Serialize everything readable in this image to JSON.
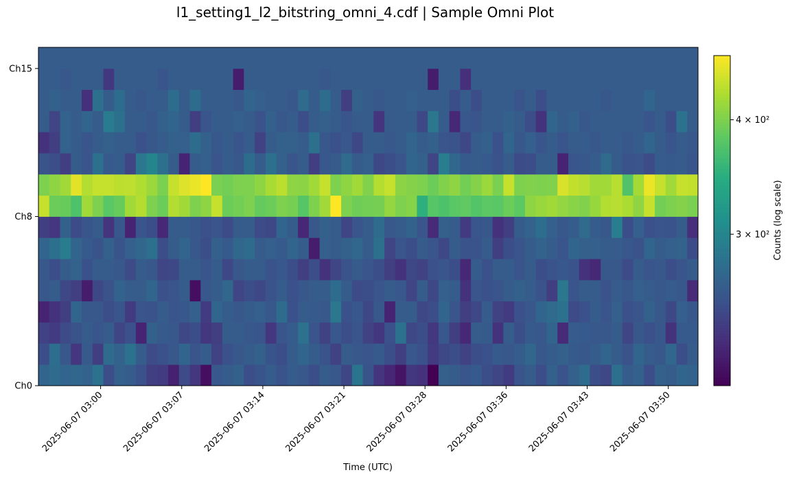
{
  "chart_data": {
    "type": "heatmap",
    "title": "l1_setting1_l2_bitstring_omni_4.cdf | Sample Omni Plot",
    "xlabel": "Time (UTC)",
    "ylabel": "",
    "colorbar_label": "Counts (log scale)",
    "colorbar_scale": "log",
    "colormap": "viridis",
    "vmin": 205,
    "vmax": 470,
    "y_channels": 16,
    "y_ticks": [
      {
        "index": 0,
        "label": "Ch0"
      },
      {
        "index": 8,
        "label": "Ch8"
      },
      {
        "index": 15,
        "label": "Ch15"
      }
    ],
    "x_range_minutes": [
      -5.75,
      55.25
    ],
    "x_ticks": [
      {
        "minute": 0.0,
        "label": "2025-06-07 03:00"
      },
      {
        "minute": 7.5,
        "label": "2025-06-07 03:07"
      },
      {
        "minute": 15.0,
        "label": "2025-06-07 03:14"
      },
      {
        "minute": 22.5,
        "label": "2025-06-07 03:21"
      },
      {
        "minute": 30.0,
        "label": "2025-06-07 03:28"
      },
      {
        "minute": 37.5,
        "label": "2025-06-07 03:36"
      },
      {
        "minute": 45.0,
        "label": "2025-06-07 03:43"
      },
      {
        "minute": 52.5,
        "label": "2025-06-07 03:50"
      }
    ],
    "colorbar_ticks": [
      {
        "value": 300,
        "label": "3 × 10²"
      },
      {
        "value": 400,
        "label": "4 × 10²"
      }
    ],
    "grid": false,
    "time_bins": 61,
    "rows": [
      [
        270,
        275,
        270,
        272,
        268,
        282,
        250,
        265,
        262,
        252,
        240,
        238,
        222,
        248,
        235,
        212,
        258,
        262,
        266,
        250,
        255,
        262,
        254,
        262,
        258,
        250,
        262,
        258,
        245,
        285,
        255,
        234,
        225,
        215,
        236,
        232,
        205,
        266,
        262,
        256,
        260,
        250,
        244,
        238,
        256,
        262,
        250,
        265,
        254,
        266,
        275,
        250,
        246,
        280,
        262,
        265,
        250,
        266,
        262,
        270,
        268
      ],
      [
        250,
        278,
        258,
        235,
        260,
        240,
        275,
        268,
        282,
        262,
        248,
        252,
        258,
        270,
        256,
        262,
        242,
        252,
        258,
        262,
        265,
        255,
        250,
        262,
        270,
        262,
        254,
        242,
        262,
        258,
        256,
        260,
        250,
        240,
        258,
        252,
        238,
        246,
        250,
        242,
        250,
        252,
        260,
        258,
        262,
        272,
        258,
        262,
        266,
        260,
        258,
        262,
        270,
        262,
        254,
        270,
        262,
        258,
        272,
        250,
        262
      ],
      [
        242,
        238,
        248,
        254,
        262,
        256,
        262,
        244,
        252,
        224,
        266,
        260,
        258,
        246,
        250,
        236,
        240,
        262,
        262,
        258,
        256,
        235,
        256,
        262,
        282,
        256,
        242,
        258,
        250,
        256,
        242,
        236,
        252,
        282,
        246,
        250,
        236,
        258,
        240,
        226,
        262,
        260,
        232,
        262,
        250,
        260,
        258,
        270,
        228,
        262,
        260,
        258,
        258,
        262,
        244,
        258,
        252,
        258,
        232,
        260,
        260
      ],
      [
        224,
        232,
        240,
        270,
        258,
        258,
        250,
        256,
        238,
        256,
        254,
        262,
        256,
        258,
        264,
        238,
        270,
        262,
        258,
        262,
        264,
        258,
        276,
        252,
        262,
        260,
        258,
        286,
        252,
        258,
        246,
        258,
        224,
        262,
        262,
        246,
        250,
        270,
        256,
        240,
        246,
        262,
        242,
        238,
        252,
        258,
        270,
        274,
        282,
        248,
        252,
        262,
        256,
        264,
        252,
        256,
        266,
        258,
        246,
        264,
        258
      ],
      [
        258,
        262,
        246,
        240,
        220,
        246,
        254,
        268,
        262,
        262,
        270,
        252,
        256,
        262,
        212,
        258,
        262,
        272,
        244,
        250,
        246,
        254,
        262,
        252,
        258,
        262,
        262,
        276,
        262,
        248,
        250,
        256,
        262,
        258,
        244,
        262,
        246,
        264,
        262,
        232,
        256,
        252,
        256,
        262,
        266,
        262,
        254,
        240,
        286,
        256,
        262,
        262,
        254,
        262,
        258,
        264,
        262,
        258,
        262,
        258,
        228
      ],
      [
        258,
        250,
        262,
        268,
        252,
        262,
        262,
        258,
        248,
        262,
        258,
        244,
        246,
        262,
        262,
        256,
        262,
        246,
        258,
        262,
        262,
        254,
        258,
        250,
        240,
        250,
        232,
        244,
        254,
        262,
        256,
        250,
        240,
        232,
        246,
        242,
        252,
        256,
        250,
        226,
        262,
        252,
        262,
        262,
        256,
        262,
        250,
        254,
        258,
        254,
        232,
        226,
        258,
        258,
        248,
        262,
        256,
        258,
        250,
        256,
        262
      ],
      [
        270,
        280,
        290,
        270,
        260,
        255,
        265,
        255,
        264,
        272,
        280,
        250,
        262,
        270,
        258,
        250,
        265,
        260,
        272,
        275,
        262,
        264,
        260,
        270,
        262,
        220,
        264,
        262,
        266,
        272,
        262,
        280,
        244,
        256,
        250,
        262,
        256,
        246,
        262,
        254,
        254,
        262,
        240,
        250,
        256,
        262,
        268,
        262,
        256,
        270,
        266,
        264,
        262,
        262,
        258,
        254,
        270,
        262,
        264,
        268,
        248
      ],
      [
        240,
        235,
        266,
        248,
        256,
        262,
        234,
        258,
        224,
        256,
        250,
        226,
        262,
        262,
        258,
        252,
        256,
        248,
        262,
        262,
        248,
        246,
        270,
        262,
        226,
        258,
        266,
        262,
        244,
        256,
        262,
        275,
        258,
        262,
        268,
        256,
        228,
        266,
        262,
        238,
        256,
        258,
        232,
        240,
        262,
        268,
        278,
        264,
        258,
        262,
        274,
        262,
        258,
        292,
        250,
        264,
        252,
        256,
        254,
        262,
        230
      ],
      [
        440,
        390,
        388,
        372,
        420,
        400,
        380,
        388,
        420,
        430,
        400,
        390,
        430,
        420,
        400,
        410,
        440,
        390,
        394,
        400,
        386,
        390,
        400,
        396,
        378,
        400,
        420,
        470,
        400,
        392,
        394,
        396,
        412,
        400,
        405,
        350,
        378,
        372,
        380,
        384,
        376,
        382,
        380,
        390,
        382,
        410,
        415,
        420,
        412,
        406,
        402,
        414,
        430,
        432,
        426,
        410,
        440,
        394,
        400,
        404,
        398
      ],
      [
        400,
        410,
        420,
        455,
        430,
        440,
        440,
        434,
        436,
        428,
        416,
        398,
        440,
        452,
        460,
        470,
        398,
        394,
        400,
        400,
        410,
        424,
        434,
        410,
        408,
        420,
        440,
        400,
        410,
        420,
        402,
        430,
        440,
        408,
        404,
        400,
        390,
        402,
        410,
        394,
        404,
        416,
        398,
        440,
        400,
        402,
        400,
        402,
        450,
        438,
        432,
        420,
        420,
        432,
        374,
        422,
        460,
        440,
        420,
        440,
        438
      ],
      [
        255,
        250,
        240,
        262,
        256,
        280,
        260,
        262,
        244,
        286,
        300,
        280,
        262,
        224,
        262,
        264,
        256,
        262,
        258,
        276,
        262,
        280,
        265,
        256,
        262,
        240,
        258,
        262,
        274,
        262,
        264,
        246,
        250,
        256,
        270,
        266,
        244,
        292,
        272,
        260,
        262,
        260,
        254,
        262,
        248,
        250,
        262,
        262,
        224,
        256,
        258,
        262,
        274,
        262,
        254,
        256,
        248,
        262,
        260,
        262,
        256
      ],
      [
        232,
        240,
        268,
        262,
        256,
        262,
        266,
        262,
        262,
        252,
        258,
        262,
        266,
        264,
        276,
        266,
        258,
        262,
        256,
        262,
        242,
        262,
        266,
        266,
        262,
        280,
        258,
        252,
        258,
        246,
        262,
        262,
        258,
        262,
        270,
        262,
        266,
        256,
        254,
        246,
        262,
        266,
        252,
        270,
        258,
        264,
        256,
        262,
        256,
        262,
        262,
        258,
        262,
        262,
        258,
        262,
        270,
        262,
        256,
        262,
        258
      ],
      [
        262,
        244,
        268,
        262,
        270,
        262,
        290,
        280,
        262,
        262,
        258,
        266,
        270,
        262,
        240,
        256,
        262,
        262,
        264,
        262,
        254,
        266,
        258,
        262,
        250,
        262,
        266,
        262,
        256,
        262,
        262,
        234,
        262,
        262,
        262,
        246,
        286,
        262,
        226,
        258,
        256,
        262,
        262,
        266,
        262,
        250,
        232,
        270,
        262,
        266,
        258,
        262,
        262,
        262,
        262,
        262,
        256,
        262,
        250,
        282,
        262
      ],
      [
        262,
        266,
        262,
        262,
        230,
        280,
        262,
        276,
        262,
        258,
        262,
        262,
        276,
        262,
        276,
        262,
        262,
        262,
        258,
        270,
        264,
        262,
        262,
        258,
        274,
        262,
        276,
        262,
        240,
        266,
        262,
        258,
        262,
        262,
        264,
        262,
        262,
        262,
        250,
        262,
        250,
        262,
        262,
        262,
        256,
        262,
        250,
        262,
        262,
        262,
        262,
        262,
        258,
        262,
        262,
        262,
        270,
        262,
        262,
        262,
        262
      ],
      [
        262,
        262,
        258,
        262,
        262,
        262,
        236,
        262,
        262,
        262,
        262,
        256,
        262,
        262,
        262,
        262,
        262,
        262,
        220,
        262,
        262,
        262,
        262,
        262,
        262,
        262,
        258,
        262,
        262,
        262,
        262,
        262,
        262,
        262,
        262,
        262,
        220,
        262,
        262,
        230,
        262,
        262,
        262,
        262,
        262,
        262,
        262,
        262,
        262,
        262,
        262,
        262,
        262,
        262,
        262,
        262,
        262,
        262,
        262,
        262,
        262
      ],
      [
        262,
        262,
        262,
        262,
        262,
        262,
        262,
        262,
        262,
        262,
        262,
        262,
        262,
        262,
        262,
        262,
        262,
        262,
        262,
        262,
        262,
        262,
        262,
        262,
        262,
        262,
        262,
        262,
        262,
        262,
        262,
        262,
        262,
        262,
        262,
        262,
        262,
        262,
        262,
        262,
        262,
        262,
        262,
        262,
        262,
        262,
        262,
        262,
        262,
        262,
        262,
        262,
        262,
        262,
        262,
        262,
        262,
        262,
        262,
        262,
        262
      ]
    ]
  }
}
